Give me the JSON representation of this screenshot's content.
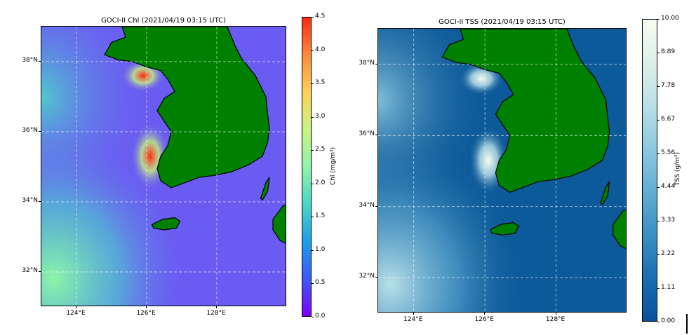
{
  "chart_data": [
    {
      "type": "heatmap",
      "title": "GOCI-II Chl (2021/04/19 03:15 UTC)",
      "xlim": [
        123.0,
        130.0
      ],
      "ylim": [
        31.0,
        39.0
      ],
      "x_ticks": [
        {
          "value": 124,
          "label": "124°E"
        },
        {
          "value": 126,
          "label": "126°E"
        },
        {
          "value": 128,
          "label": "128°E"
        }
      ],
      "y_ticks": [
        {
          "value": 32,
          "label": "32°N"
        },
        {
          "value": 34,
          "label": "34°N"
        },
        {
          "value": 36,
          "label": "36°N"
        },
        {
          "value": 38,
          "label": "38°N"
        }
      ],
      "grid": true,
      "colorbar": {
        "label": "Chl (mg/m³)",
        "range": [
          0.0,
          4.5
        ],
        "ticks": [
          "0.0",
          "0.5",
          "1.0",
          "1.5",
          "2.0",
          "2.5",
          "3.0",
          "3.5",
          "4.0",
          "4.5"
        ],
        "colormap": "rainbow",
        "colors": [
          "#7f00ff",
          "#3a5af9",
          "#1d9ee8",
          "#4bd6c9",
          "#8df5a8",
          "#c8f57e",
          "#ffd15c",
          "#ff8a3a",
          "#ff2a10"
        ]
      },
      "land_color": "#008000",
      "ocean_base_color": "#6a5cf2"
    },
    {
      "type": "heatmap",
      "title": "GOCI-II TSS (2021/04/19 03:15 UTC)",
      "xlim": [
        123.0,
        130.0
      ],
      "ylim": [
        31.0,
        39.0
      ],
      "x_ticks": [
        {
          "value": 124,
          "label": "124°E"
        },
        {
          "value": 126,
          "label": "126°E"
        },
        {
          "value": 128,
          "label": "128°E"
        }
      ],
      "y_ticks": [
        {
          "value": 32,
          "label": "32°N"
        },
        {
          "value": 34,
          "label": "34°N"
        },
        {
          "value": 36,
          "label": "36°N"
        },
        {
          "value": 38,
          "label": "38°N"
        }
      ],
      "grid": true,
      "colorbar": {
        "label": "TSS (g/m³)",
        "range": [
          0.0,
          10.0
        ],
        "ticks": [
          "0.00",
          "1.11",
          "2.22",
          "3.33",
          "4.44",
          "5.56",
          "6.67",
          "7.78",
          "8.89",
          "10.00"
        ],
        "colormap": "GnBu",
        "colors": [
          "#08529c",
          "#1b6eb0",
          "#3a8fc4",
          "#62add3",
          "#8cc9de",
          "#b9e0e8",
          "#dcf0e8",
          "#f7fcf0"
        ]
      },
      "land_color": "#008000",
      "ocean_base_color": "#0d5a9a"
    }
  ]
}
